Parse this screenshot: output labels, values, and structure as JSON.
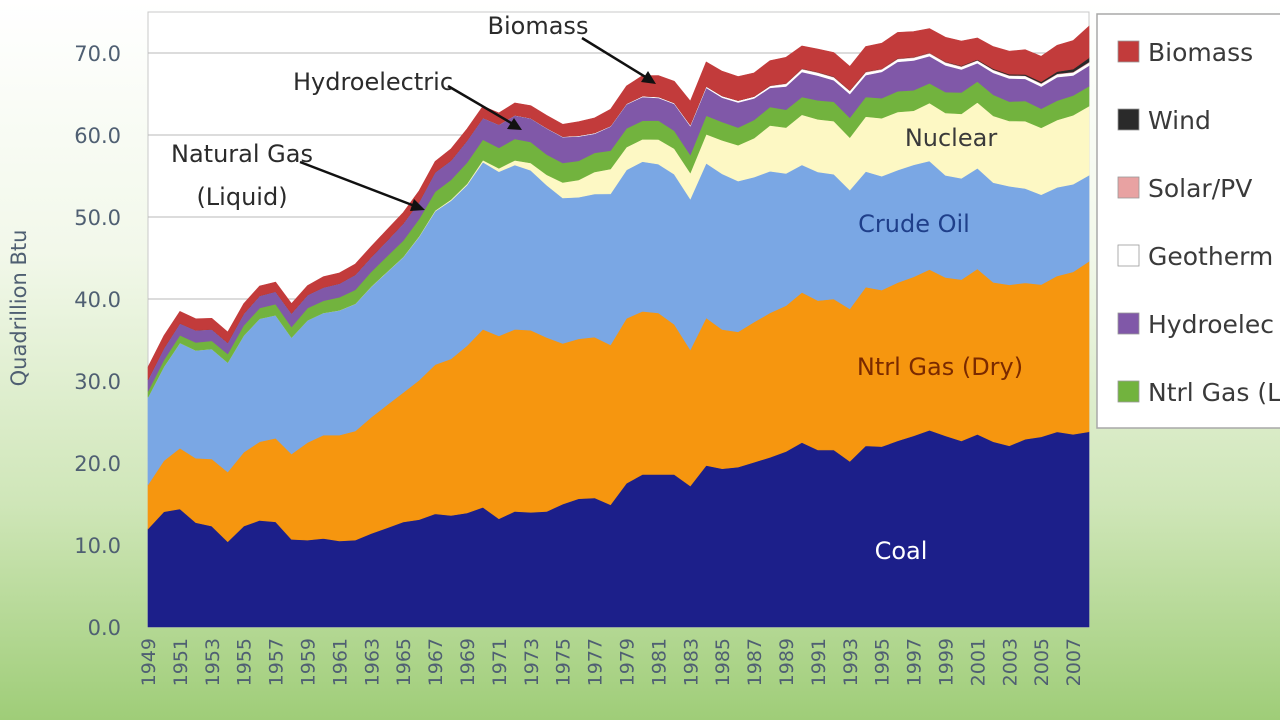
{
  "chart_data": {
    "type": "area",
    "stacked": true,
    "ylabel": "Quadrillion Btu",
    "xlabel": "",
    "ylim": [
      0,
      75
    ],
    "yticks": [
      "0.0",
      "10.0",
      "20.0",
      "30.0",
      "40.0",
      "50.0",
      "60.0",
      "70.0"
    ],
    "x_tick_labels": [
      "1949",
      "1951",
      "1953",
      "1955",
      "1957",
      "1959",
      "1961",
      "1963",
      "1965",
      "1967",
      "1969",
      "1971",
      "1973",
      "1975",
      "1977",
      "1979",
      "1981",
      "1983",
      "1985",
      "1987",
      "1989",
      "1991",
      "1993",
      "1995",
      "1997",
      "1999",
      "2001",
      "2003",
      "2005",
      "2007"
    ],
    "x": [
      1949,
      1950,
      1951,
      1952,
      1953,
      1954,
      1955,
      1956,
      1957,
      1958,
      1959,
      1960,
      1961,
      1962,
      1963,
      1964,
      1965,
      1966,
      1967,
      1968,
      1969,
      1970,
      1971,
      1972,
      1973,
      1974,
      1975,
      1976,
      1977,
      1978,
      1979,
      1980,
      1981,
      1982,
      1983,
      1984,
      1985,
      1986,
      1987,
      1988,
      1989,
      1990,
      1991,
      1992,
      1993,
      1994,
      1995,
      1996,
      1997,
      1998,
      1999,
      2000,
      2001,
      2002,
      2003,
      2004,
      2005,
      2006,
      2007,
      2008
    ],
    "colors": {
      "coal": "#1c1f8a",
      "ntrl_gas_dry": "#f6960f",
      "crude_oil": "#7aa7e4",
      "nuclear": "#fdf8c4",
      "ntrl_gas_liquid": "#72b33e",
      "hydroelectric": "#8058a8",
      "geothermal": "#ffffff",
      "solar_pv": "#e8a2a2",
      "wind": "#2a2a2a",
      "biomass": "#c23b3b"
    },
    "series": [
      {
        "key": "coal",
        "values": [
          11.97,
          14.06,
          14.4,
          12.73,
          12.3,
          10.4,
          12.31,
          13.0,
          12.83,
          10.7,
          10.6,
          10.8,
          10.5,
          10.6,
          11.4,
          12.1,
          12.8,
          13.1,
          13.8,
          13.6,
          13.9,
          14.6,
          13.2,
          14.1,
          13.99,
          14.1,
          14.99,
          15.65,
          15.75,
          14.9,
          17.54,
          18.6,
          18.6,
          18.6,
          17.2,
          19.7,
          19.3,
          19.5,
          20.1,
          20.7,
          21.4,
          22.5,
          21.6,
          21.6,
          20.2,
          22.1,
          22.0,
          22.7,
          23.3,
          24.0,
          23.3,
          22.7,
          23.5,
          22.6,
          22.1,
          22.9,
          23.2,
          23.8,
          23.5,
          23.8
        ]
      },
      {
        "key": "ntrl_gas_dry",
        "values": [
          5.38,
          6.23,
          7.42,
          7.85,
          8.2,
          8.5,
          9.0,
          9.6,
          10.2,
          10.4,
          11.9,
          12.6,
          12.9,
          13.3,
          14.2,
          15.0,
          15.8,
          17.0,
          18.2,
          19.1,
          20.4,
          21.7,
          22.3,
          22.2,
          22.2,
          21.2,
          19.6,
          19.5,
          19.6,
          19.5,
          20.1,
          19.9,
          19.7,
          18.3,
          16.6,
          18.0,
          16.98,
          16.5,
          17.1,
          17.6,
          17.8,
          18.3,
          18.2,
          18.4,
          18.6,
          19.35,
          19.08,
          19.3,
          19.4,
          19.6,
          19.34,
          19.66,
          20.17,
          19.44,
          19.63,
          19.07,
          18.56,
          19.02,
          19.8,
          20.8
        ]
      },
      {
        "key": "crude_oil",
        "values": [
          10.68,
          11.45,
          12.84,
          13.15,
          13.4,
          13.35,
          14.23,
          15.0,
          15.0,
          14.2,
          14.9,
          14.9,
          15.2,
          15.5,
          15.9,
          16.2,
          16.5,
          17.5,
          18.7,
          19.3,
          19.6,
          20.4,
          20.03,
          20.04,
          19.49,
          18.58,
          17.73,
          17.26,
          17.45,
          18.43,
          18.1,
          18.25,
          18.15,
          18.31,
          18.39,
          18.85,
          18.99,
          18.38,
          17.67,
          17.28,
          16.12,
          15.57,
          15.7,
          15.22,
          14.49,
          14.1,
          13.89,
          13.72,
          13.66,
          13.23,
          12.45,
          12.36,
          12.28,
          12.16,
          12.03,
          11.5,
          10.96,
          10.8,
          10.7,
          10.5
        ]
      },
      {
        "key": "nuclear",
        "values": [
          0,
          0,
          0,
          0,
          0,
          0,
          0,
          0,
          0,
          0,
          0,
          0.01,
          0.02,
          0.03,
          0.04,
          0.04,
          0.04,
          0.06,
          0.09,
          0.14,
          0.15,
          0.24,
          0.41,
          0.58,
          0.91,
          1.27,
          1.9,
          2.11,
          2.7,
          3.02,
          2.78,
          2.74,
          3.01,
          3.13,
          3.2,
          3.55,
          4.08,
          4.38,
          4.75,
          5.59,
          5.6,
          6.1,
          6.42,
          6.48,
          6.41,
          6.69,
          7.08,
          7.09,
          6.6,
          7.07,
          7.61,
          7.86,
          8.03,
          8.14,
          7.96,
          8.22,
          8.16,
          8.21,
          8.41,
          8.43
        ]
      },
      {
        "key": "ntrl_gas_liquid",
        "values": [
          0.71,
          0.82,
          0.93,
          0.98,
          1.0,
          1.05,
          1.24,
          1.3,
          1.35,
          1.3,
          1.5,
          1.48,
          1.6,
          1.7,
          1.8,
          1.9,
          2.0,
          2.1,
          2.3,
          2.4,
          2.6,
          2.5,
          2.5,
          2.6,
          2.56,
          2.47,
          2.37,
          2.33,
          2.33,
          2.25,
          2.29,
          2.25,
          2.31,
          2.19,
          2.18,
          2.27,
          2.24,
          2.15,
          2.22,
          2.26,
          2.16,
          2.17,
          2.31,
          2.36,
          2.41,
          2.39,
          2.44,
          2.53,
          2.5,
          2.42,
          2.53,
          2.61,
          2.55,
          2.56,
          2.35,
          2.47,
          2.33,
          2.36,
          2.41,
          2.42
        ]
      },
      {
        "key": "hydroelectric",
        "values": [
          1.42,
          1.41,
          1.45,
          1.47,
          1.4,
          1.36,
          1.41,
          1.49,
          1.52,
          1.64,
          1.59,
          1.61,
          1.66,
          1.82,
          1.77,
          1.89,
          2.06,
          2.06,
          2.35,
          2.35,
          2.65,
          2.63,
          2.82,
          2.86,
          2.86,
          3.18,
          3.15,
          2.98,
          2.33,
          2.94,
          2.93,
          2.9,
          2.76,
          3.27,
          3.53,
          3.39,
          2.97,
          3.07,
          2.63,
          2.33,
          2.84,
          3.05,
          3.02,
          2.62,
          2.89,
          2.68,
          3.21,
          3.59,
          3.64,
          3.3,
          3.27,
          2.81,
          2.24,
          2.69,
          2.83,
          2.69,
          2.7,
          2.87,
          2.45,
          2.51
        ]
      },
      {
        "key": "geothermal",
        "values": [
          0,
          0,
          0,
          0,
          0,
          0,
          0,
          0,
          0,
          0,
          0,
          0,
          0,
          0,
          0,
          0,
          0,
          0,
          0,
          0,
          0.01,
          0.01,
          0.01,
          0.03,
          0.04,
          0.05,
          0.07,
          0.08,
          0.08,
          0.06,
          0.08,
          0.11,
          0.12,
          0.1,
          0.13,
          0.17,
          0.2,
          0.22,
          0.23,
          0.22,
          0.32,
          0.34,
          0.35,
          0.36,
          0.36,
          0.34,
          0.29,
          0.32,
          0.32,
          0.33,
          0.33,
          0.32,
          0.31,
          0.33,
          0.33,
          0.34,
          0.34,
          0.34,
          0.35,
          0.36
        ]
      },
      {
        "key": "solar_pv",
        "values": [
          0,
          0,
          0,
          0,
          0,
          0,
          0,
          0,
          0,
          0,
          0,
          0,
          0,
          0,
          0,
          0,
          0,
          0,
          0,
          0,
          0,
          0,
          0,
          0,
          0,
          0,
          0,
          0,
          0,
          0,
          0,
          0,
          0,
          0,
          0,
          0,
          0,
          0,
          0,
          0.05,
          0.06,
          0.06,
          0.06,
          0.06,
          0.07,
          0.07,
          0.07,
          0.07,
          0.07,
          0.07,
          0.07,
          0.07,
          0.06,
          0.06,
          0.06,
          0.06,
          0.07,
          0.07,
          0.08,
          0.09
        ]
      },
      {
        "key": "wind",
        "values": [
          0,
          0,
          0,
          0,
          0,
          0,
          0,
          0,
          0,
          0,
          0,
          0,
          0,
          0,
          0,
          0,
          0,
          0,
          0,
          0,
          0,
          0,
          0,
          0,
          0,
          0,
          0,
          0,
          0,
          0,
          0,
          0,
          0,
          0,
          0,
          0,
          0,
          0,
          0,
          0.02,
          0.02,
          0.03,
          0.03,
          0.03,
          0.03,
          0.04,
          0.03,
          0.03,
          0.03,
          0.03,
          0.05,
          0.06,
          0.07,
          0.1,
          0.12,
          0.14,
          0.18,
          0.26,
          0.34,
          0.51
        ]
      },
      {
        "key": "biomass",
        "values": [
          1.55,
          1.56,
          1.45,
          1.4,
          1.35,
          1.31,
          1.24,
          1.2,
          1.16,
          1.2,
          1.15,
          1.32,
          1.3,
          1.32,
          1.32,
          1.34,
          1.34,
          1.37,
          1.34,
          1.43,
          1.43,
          1.43,
          1.43,
          1.5,
          1.53,
          1.54,
          1.5,
          1.71,
          1.84,
          2.04,
          2.15,
          2.48,
          2.6,
          2.66,
          2.9,
          2.98,
          3.02,
          2.93,
          2.87,
          3.02,
          3.16,
          2.74,
          2.79,
          2.93,
          2.91,
          3.03,
          3.1,
          3.16,
          3.1,
          2.93,
          2.97,
          3.01,
          2.62,
          2.7,
          2.81,
          3.01,
          3.1,
          3.21,
          3.47,
          3.85
        ]
      }
    ],
    "area_labels": {
      "coal": "Coal",
      "ntrl_gas_dry": "Ntrl Gas (Dry)",
      "crude_oil": "Crude Oil",
      "nuclear": "Nuclear"
    },
    "annotations": [
      {
        "text": "Biomass"
      },
      {
        "text": "Hydroelectric"
      },
      {
        "lines": [
          "Natural Gas",
          "(Liquid)"
        ]
      }
    ],
    "legend": {
      "placement": "right",
      "entries": [
        {
          "key": "biomass",
          "label": "Biomass"
        },
        {
          "key": "wind",
          "label": "Wind"
        },
        {
          "key": "solar_pv",
          "label": "Solar/PV"
        },
        {
          "key": "geothermal",
          "label": "Geotherm"
        },
        {
          "key": "hydroelectric",
          "label": "Hydroelec"
        },
        {
          "key": "ntrl_gas_liquid",
          "label": "Ntrl Gas (L"
        }
      ]
    },
    "grid": "horizontal"
  }
}
